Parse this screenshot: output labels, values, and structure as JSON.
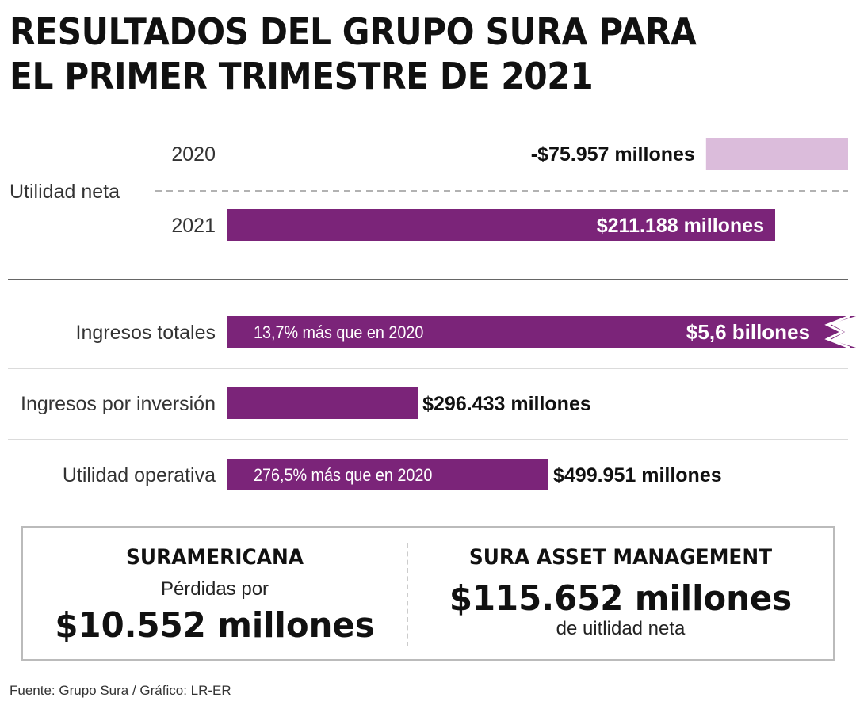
{
  "title_lines": [
    "RESULTADOS DEL GRUPO SURA PARA",
    "EL PRIMER TRIMESTRE DE 2021"
  ],
  "colors": {
    "purple": "#7b2479",
    "light_purple": "#dbbcdb",
    "text": "#111111"
  },
  "chart_data": [
    {
      "type": "bar",
      "group_label": "Utilidad neta",
      "categories": [
        "2020",
        "2021"
      ],
      "values": [
        -75957,
        211188
      ],
      "unit": "millones",
      "value_labels": [
        "-$75.957 millones",
        "$211.188 millones"
      ]
    },
    {
      "type": "bar",
      "categories": [
        "Ingresos totales",
        "Ingresos por inversión",
        "Utilidad operativa"
      ],
      "values": [
        5600000,
        296433,
        499951
      ],
      "unit": "millones",
      "value_labels": [
        "$5,6 billones",
        "$296.433 millones",
        "$499.951 millones"
      ],
      "annotations": [
        "13,7% más que en 2020",
        "",
        "276,5% más que en 2020"
      ],
      "axis_break_on": "Ingresos totales"
    }
  ],
  "summary": {
    "left": {
      "heading": "SURAMERICANA",
      "line": "Pérdidas por",
      "value": "$10.552 millones"
    },
    "right": {
      "heading": "SURA ASSET MANAGEMENT",
      "value": "$115.652 millones",
      "line": "de uitlidad neta"
    }
  },
  "source": "Fuente: Grupo Sura / Gráfico: LR-ER"
}
